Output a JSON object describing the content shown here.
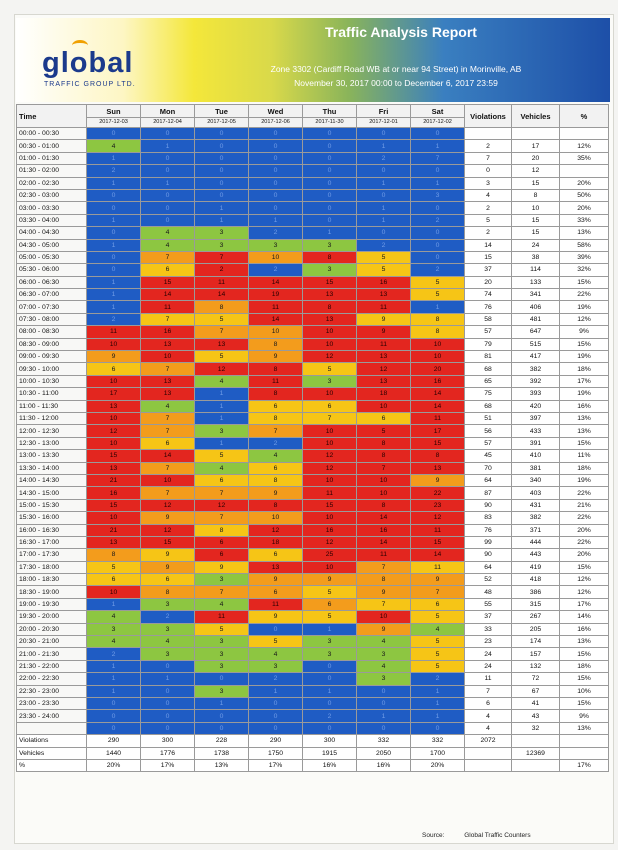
{
  "header": {
    "logo_word": "global",
    "logo_sub": "TRAFFIC GROUP LTD.",
    "title": "Traffic Analysis Report",
    "zone": "Zone 3302 (Cardiff Road WB at or near 94 Street) in Morinville, AB",
    "dates": "November 30, 2017 00:00 to December 6, 2017 23:59"
  },
  "table": {
    "time_header": "Time",
    "days": [
      {
        "name": "Sun",
        "date": "2017-12-03"
      },
      {
        "name": "Mon",
        "date": "2017-12-04"
      },
      {
        "name": "Tue",
        "date": "2017-12-05"
      },
      {
        "name": "Wed",
        "date": "2017-12-06"
      },
      {
        "name": "Thu",
        "date": "2017-11-30"
      },
      {
        "name": "Fri",
        "date": "2017-12-01"
      },
      {
        "name": "Sat",
        "date": "2017-12-02"
      }
    ],
    "col_violations": "Violations",
    "col_vehicles": "Vehicles",
    "col_pct": "%",
    "rows": [
      {
        "time": "00:00 - 00:30",
        "cells": [
          "0",
          "0",
          "0",
          "0",
          "0",
          "0",
          "0"
        ],
        "colors": "bbbbbbb",
        "v": "",
        "veh": "",
        "pct": ""
      },
      {
        "time": "00:30 - 01:00",
        "cells": [
          "4",
          "1",
          "0",
          "0",
          "0",
          "1",
          "1"
        ],
        "colors": "gbbbbbb",
        "v": "2",
        "veh": "17",
        "pct": "12%"
      },
      {
        "time": "01:00 - 01:30",
        "cells": [
          "1",
          "0",
          "0",
          "0",
          "0",
          "2",
          "7"
        ],
        "colors": "bbbbbbb",
        "v": "7",
        "veh": "20",
        "pct": "35%"
      },
      {
        "time": "01:30 - 02:00",
        "cells": [
          "2",
          "0",
          "0",
          "0",
          "0",
          "0",
          "0"
        ],
        "colors": "bbbbbbb",
        "v": "0",
        "veh": "12",
        "pct": ""
      },
      {
        "time": "02:00 - 02:30",
        "cells": [
          "1",
          "1",
          "0",
          "0",
          "0",
          "1",
          "1"
        ],
        "colors": "bbbbbbb",
        "v": "3",
        "veh": "15",
        "pct": "20%"
      },
      {
        "time": "02:30 - 03:00",
        "cells": [
          "0",
          "0",
          "0",
          "0",
          "0",
          "0",
          "3"
        ],
        "colors": "bbbbbbb",
        "v": "4",
        "veh": "8",
        "pct": "50%"
      },
      {
        "time": "03:00 - 03:30",
        "cells": [
          "0",
          "0",
          "1",
          "0",
          "0",
          "1",
          "0"
        ],
        "colors": "bbbbbbb",
        "v": "2",
        "veh": "10",
        "pct": "20%"
      },
      {
        "time": "03:30 - 04:00",
        "cells": [
          "1",
          "0",
          "1",
          "1",
          "0",
          "1",
          "2"
        ],
        "colors": "bbbbbbb",
        "v": "5",
        "veh": "15",
        "pct": "33%"
      },
      {
        "time": "04:00 - 04:30",
        "cells": [
          "0",
          "4",
          "3",
          "2",
          "1",
          "0",
          "0"
        ],
        "colors": "bggbbbb",
        "v": "2",
        "veh": "15",
        "pct": "13%"
      },
      {
        "time": "04:30 - 05:00",
        "cells": [
          "1",
          "4",
          "3",
          "3",
          "3",
          "2",
          "0"
        ],
        "colors": "bggggbb",
        "v": "14",
        "veh": "24",
        "pct": "58%"
      },
      {
        "time": "05:00 - 05:30",
        "cells": [
          "0",
          "7",
          "7",
          "10",
          "8",
          "5",
          "0"
        ],
        "colors": "bororyb",
        "v": "15",
        "veh": "38",
        "pct": "39%"
      },
      {
        "time": "05:30 - 06:00",
        "cells": [
          "0",
          "6",
          "2",
          "2",
          "3",
          "5",
          "2"
        ],
        "colors": "byrbgyb",
        "v": "37",
        "veh": "114",
        "pct": "32%"
      },
      {
        "time": "06:00 - 06:30",
        "cells": [
          "1",
          "15",
          "11",
          "14",
          "15",
          "16",
          "5"
        ],
        "colors": "brrrrry",
        "v": "20",
        "veh": "133",
        "pct": "15%"
      },
      {
        "time": "06:30 - 07:00",
        "cells": [
          "1",
          "14",
          "14",
          "19",
          "13",
          "13",
          "5"
        ],
        "colors": "brrrrry",
        "v": "74",
        "veh": "341",
        "pct": "22%"
      },
      {
        "time": "07:00 - 07:30",
        "cells": [
          "1",
          "11",
          "8",
          "11",
          "8",
          "11",
          "1"
        ],
        "colors": "brorrrb",
        "v": "76",
        "veh": "406",
        "pct": "19%"
      },
      {
        "time": "07:30 - 08:00",
        "cells": [
          "2",
          "7",
          "5",
          "14",
          "13",
          "9",
          "8"
        ],
        "colors": "byyrryy",
        "v": "58",
        "veh": "481",
        "pct": "12%"
      },
      {
        "time": "08:00 - 08:30",
        "cells": [
          "11",
          "16",
          "7",
          "10",
          "10",
          "9",
          "8"
        ],
        "colors": "rroorry",
        "v": "57",
        "veh": "647",
        "pct": "9%"
      },
      {
        "time": "08:30 - 09:00",
        "cells": [
          "10",
          "13",
          "13",
          "8",
          "10",
          "11",
          "10"
        ],
        "colors": "rrrorrr",
        "v": "79",
        "veh": "515",
        "pct": "15%"
      },
      {
        "time": "09:00 - 09:30",
        "cells": [
          "9",
          "10",
          "5",
          "9",
          "12",
          "13",
          "10"
        ],
        "colors": "oryorrr",
        "v": "81",
        "veh": "417",
        "pct": "19%"
      },
      {
        "time": "09:30 - 10:00",
        "cells": [
          "6",
          "7",
          "12",
          "8",
          "5",
          "12",
          "20"
        ],
        "colors": "yorryrr",
        "v": "68",
        "veh": "382",
        "pct": "18%"
      },
      {
        "time": "10:00 - 10:30",
        "cells": [
          "10",
          "13",
          "4",
          "11",
          "3",
          "13",
          "16"
        ],
        "colors": "rrgrgrr",
        "v": "65",
        "veh": "392",
        "pct": "17%"
      },
      {
        "time": "10:30 - 11:00",
        "cells": [
          "17",
          "13",
          "1",
          "8",
          "10",
          "18",
          "14"
        ],
        "colors": "rrbrrrr",
        "v": "75",
        "veh": "393",
        "pct": "19%"
      },
      {
        "time": "11:00 - 11:30",
        "cells": [
          "13",
          "4",
          "1",
          "6",
          "6",
          "10",
          "14"
        ],
        "colors": "rgbyyrr",
        "v": "68",
        "veh": "420",
        "pct": "16%"
      },
      {
        "time": "11:30 - 12:00",
        "cells": [
          "10",
          "7",
          "1",
          "8",
          "7",
          "6",
          "11"
        ],
        "colors": "robyyyr",
        "v": "51",
        "veh": "397",
        "pct": "13%"
      },
      {
        "time": "12:00 - 12:30",
        "cells": [
          "12",
          "7",
          "3",
          "7",
          "10",
          "5",
          "17"
        ],
        "colors": "rogorrr",
        "v": "56",
        "veh": "433",
        "pct": "13%"
      },
      {
        "time": "12:30 - 13:00",
        "cells": [
          "10",
          "6",
          "1",
          "2",
          "10",
          "8",
          "15"
        ],
        "colors": "rybbrrr",
        "v": "57",
        "veh": "391",
        "pct": "15%"
      },
      {
        "time": "13:00 - 13:30",
        "cells": [
          "15",
          "14",
          "5",
          "4",
          "12",
          "8",
          "8"
        ],
        "colors": "rrygrrr",
        "v": "45",
        "veh": "410",
        "pct": "11%"
      },
      {
        "time": "13:30 - 14:00",
        "cells": [
          "13",
          "7",
          "4",
          "6",
          "12",
          "7",
          "13"
        ],
        "colors": "rogyrrr",
        "v": "70",
        "veh": "381",
        "pct": "18%"
      },
      {
        "time": "14:00 - 14:30",
        "cells": [
          "21",
          "10",
          "6",
          "8",
          "10",
          "10",
          "9"
        ],
        "colors": "rryyrro",
        "v": "64",
        "veh": "340",
        "pct": "19%"
      },
      {
        "time": "14:30 - 15:00",
        "cells": [
          "16",
          "7",
          "7",
          "9",
          "11",
          "10",
          "22"
        ],
        "colors": "rooorrr",
        "v": "87",
        "veh": "403",
        "pct": "22%"
      },
      {
        "time": "15:00 - 15:30",
        "cells": [
          "15",
          "12",
          "12",
          "8",
          "15",
          "8",
          "23"
        ],
        "colors": "rrrrrrr",
        "v": "90",
        "veh": "431",
        "pct": "21%"
      },
      {
        "time": "15:30 - 16:00",
        "cells": [
          "10",
          "9",
          "7",
          "10",
          "10",
          "14",
          "12"
        ],
        "colors": "rooorrr",
        "v": "83",
        "veh": "382",
        "pct": "22%"
      },
      {
        "time": "16:00 - 16:30",
        "cells": [
          "21",
          "12",
          "8",
          "12",
          "16",
          "16",
          "11"
        ],
        "colors": "rryrrrr",
        "v": "76",
        "veh": "371",
        "pct": "20%"
      },
      {
        "time": "16:30 - 17:00",
        "cells": [
          "13",
          "15",
          "6",
          "18",
          "12",
          "14",
          "15"
        ],
        "colors": "rrrrrrr",
        "v": "99",
        "veh": "444",
        "pct": "22%"
      },
      {
        "time": "17:00 - 17:30",
        "cells": [
          "8",
          "9",
          "6",
          "6",
          "25",
          "11",
          "14"
        ],
        "colors": "oyryrrr",
        "v": "90",
        "veh": "443",
        "pct": "20%"
      },
      {
        "time": "17:30 - 18:00",
        "cells": [
          "5",
          "9",
          "9",
          "13",
          "10",
          "7",
          "11"
        ],
        "colors": "yoyrroy",
        "v": "64",
        "veh": "419",
        "pct": "15%"
      },
      {
        "time": "18:00 - 18:30",
        "cells": [
          "6",
          "6",
          "3",
          "9",
          "9",
          "8",
          "9"
        ],
        "colors": "yygoooo",
        "v": "52",
        "veh": "418",
        "pct": "12%"
      },
      {
        "time": "18:30 - 19:00",
        "cells": [
          "10",
          "8",
          "7",
          "6",
          "5",
          "9",
          "7"
        ],
        "colors": "roooyoo",
        "v": "48",
        "veh": "386",
        "pct": "12%"
      },
      {
        "time": "19:00 - 19:30",
        "cells": [
          "1",
          "3",
          "4",
          "11",
          "6",
          "7",
          "6"
        ],
        "colors": "bggroyy",
        "v": "55",
        "veh": "315",
        "pct": "17%"
      },
      {
        "time": "19:30 - 20:00",
        "cells": [
          "4",
          "2",
          "11",
          "9",
          "5",
          "10",
          "5"
        ],
        "colors": "gbryyry",
        "v": "37",
        "veh": "267",
        "pct": "14%"
      },
      {
        "time": "20:00 - 20:30",
        "cells": [
          "3",
          "3",
          "5",
          "0",
          "1",
          "9",
          "4"
        ],
        "colors": "ggybbog",
        "v": "33",
        "veh": "205",
        "pct": "16%"
      },
      {
        "time": "20:30 - 21:00",
        "cells": [
          "4",
          "4",
          "3",
          "5",
          "3",
          "4",
          "5"
        ],
        "colors": "gggyggy",
        "v": "23",
        "veh": "174",
        "pct": "13%"
      },
      {
        "time": "21:00 - 21:30",
        "cells": [
          "2",
          "3",
          "3",
          "4",
          "3",
          "3",
          "5"
        ],
        "colors": "bgggggy",
        "v": "24",
        "veh": "157",
        "pct": "15%"
      },
      {
        "time": "21:30 - 22:00",
        "cells": [
          "1",
          "0",
          "3",
          "3",
          "0",
          "4",
          "5"
        ],
        "colors": "bbggbgy",
        "v": "24",
        "veh": "132",
        "pct": "18%"
      },
      {
        "time": "22:00 - 22:30",
        "cells": [
          "1",
          "1",
          "0",
          "2",
          "0",
          "3",
          "2"
        ],
        "colors": "bbbbbgb",
        "v": "11",
        "veh": "72",
        "pct": "15%"
      },
      {
        "time": "22:30 - 23:00",
        "cells": [
          "1",
          "0",
          "3",
          "1",
          "1",
          "0",
          "1"
        ],
        "colors": "bbgbbbb",
        "v": "7",
        "veh": "67",
        "pct": "10%"
      },
      {
        "time": "23:00 - 23:30",
        "cells": [
          "0",
          "0",
          "1",
          "0",
          "0",
          "0",
          "1"
        ],
        "colors": "bbbbbbb",
        "v": "6",
        "veh": "41",
        "pct": "15%"
      },
      {
        "time": "23:30 - 24:00",
        "cells": [
          "0",
          "0",
          "0",
          "0",
          "2",
          "1",
          "1"
        ],
        "colors": "bbbbbbb",
        "v": "4",
        "veh": "43",
        "pct": "9%"
      },
      {
        "time": "",
        "cells": [
          "0",
          "0",
          "0",
          "0",
          "0",
          "0",
          "0"
        ],
        "colors": "bbbbbbb",
        "v": "4",
        "veh": "32",
        "pct": "13%"
      }
    ],
    "summary": {
      "violations_label": "Violations",
      "violations": [
        "290",
        "300",
        "228",
        "290",
        "300",
        "332",
        "332"
      ],
      "violations_total": "2072",
      "vehicles_label": "Vehicles",
      "vehicles": [
        "1440",
        "1776",
        "1738",
        "1750",
        "1915",
        "2050",
        "1700"
      ],
      "vehicles_total": "12369",
      "pct_label": "%",
      "pct": [
        "20%",
        "17%",
        "13%",
        "17%",
        "16%",
        "16%",
        "20%"
      ],
      "pct_total": "17%"
    }
  },
  "footer": {
    "source_label": "Source:",
    "source_value": "Global Traffic Counters"
  },
  "colors": {
    "blue": "#1f5cc4",
    "green": "#8dc641",
    "yellow": "#f6c516",
    "orange": "#f39c1c",
    "red": "#e3261f"
  }
}
